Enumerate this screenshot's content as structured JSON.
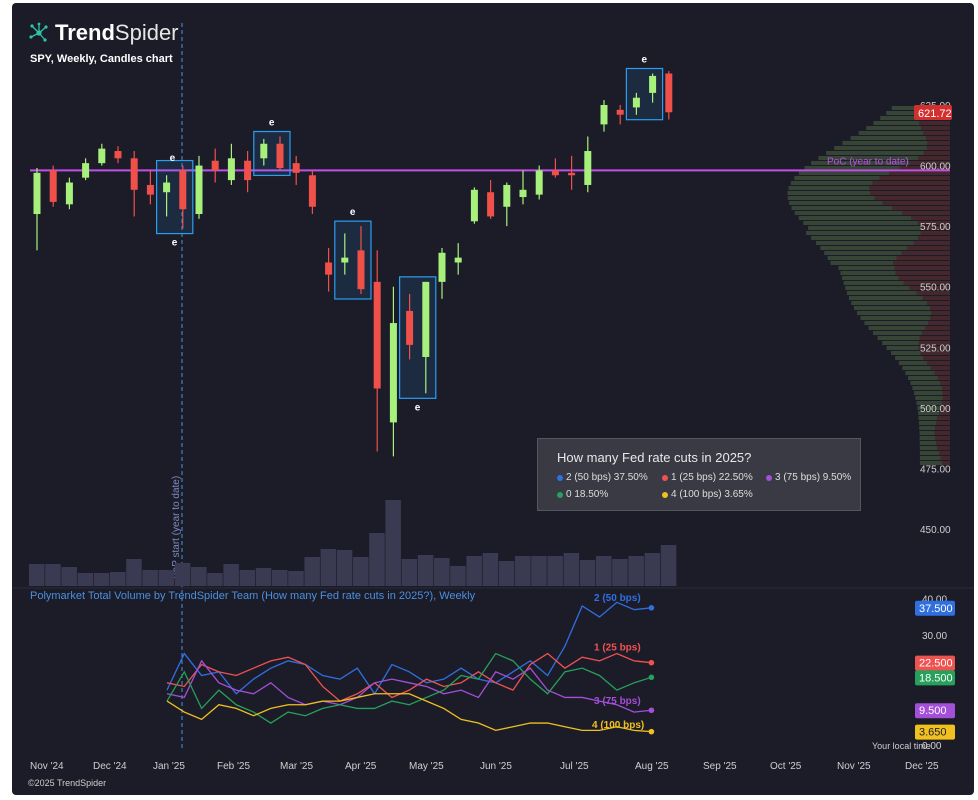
{
  "brand": {
    "bold": "Trend",
    "thin": "Spider",
    "logo_icon": "spider-network-icon"
  },
  "chart_subtitle": "SPY, Weekly, Candles chart",
  "indicator_title": "Polymarket Total Volume by TrendSpider Team (How many Fed rate cuts in 2025?), Weekly",
  "footer": "©2025 TrendSpider",
  "local_time_label": "Your local time",
  "vbp_label": "VbP start (year to date)",
  "poc_label": "PoC (year to date)",
  "earnings_marker": "e",
  "colors": {
    "bg": "#1c1c28",
    "up": "#a8f07c",
    "down": "#f0504a",
    "poc": "#c050e8",
    "highlight": "#2a9df4"
  },
  "legend": {
    "question": "How many Fed rate cuts in 2025?",
    "items": [
      {
        "label": "2 (50 bps) 37.50%",
        "color": "#2f6fe0"
      },
      {
        "label": "1 (25 bps) 22.50%",
        "color": "#ef5350"
      },
      {
        "label": "3 (75 bps) 9.50%",
        "color": "#a34fd8"
      },
      {
        "label": "0 18.50%",
        "color": "#26a05a"
      },
      {
        "label": "4 (100 bps) 3.65%",
        "color": "#f0c020"
      }
    ]
  },
  "chart_data": [
    {
      "type": "candlestick",
      "title": "SPY, Weekly, Candles chart",
      "x_ticks": [
        "Nov '24",
        "Dec '24",
        "Jan '25",
        "Feb '25",
        "Mar '25",
        "Apr '25",
        "May '25",
        "Jun '25",
        "Jul '25",
        "Aug '25",
        "Sep '25",
        "Oct '25",
        "Nov '25",
        "Dec '25"
      ],
      "y_ticks": [
        450.0,
        475.0,
        500.0,
        525.0,
        550.0,
        575.0,
        600.0,
        625.0
      ],
      "ylim": [
        442,
        650
      ],
      "last_price": "621.72",
      "poc_price": 598,
      "candles": [
        {
          "o": 580,
          "h": 599,
          "l": 565,
          "c": 597
        },
        {
          "o": 598,
          "h": 600,
          "l": 583,
          "c": 585
        },
        {
          "o": 584,
          "h": 595,
          "l": 582,
          "c": 593
        },
        {
          "o": 595,
          "h": 603,
          "l": 594,
          "c": 601
        },
        {
          "o": 601,
          "h": 609,
          "l": 600,
          "c": 607
        },
        {
          "o": 606,
          "h": 608,
          "l": 601,
          "c": 603
        },
        {
          "o": 603,
          "h": 606,
          "l": 579,
          "c": 590
        },
        {
          "o": 592,
          "h": 598,
          "l": 584,
          "c": 588
        },
        {
          "o": 589,
          "h": 596,
          "l": 579,
          "c": 593
        },
        {
          "o": 598,
          "h": 600,
          "l": 574,
          "c": 582
        },
        {
          "o": 580,
          "h": 604,
          "l": 578,
          "c": 600
        },
        {
          "o": 602,
          "h": 607,
          "l": 593,
          "c": 598
        },
        {
          "o": 594,
          "h": 609,
          "l": 592,
          "c": 603
        },
        {
          "o": 602,
          "h": 606,
          "l": 589,
          "c": 594
        },
        {
          "o": 603,
          "h": 611,
          "l": 600,
          "c": 609
        },
        {
          "o": 609,
          "h": 612,
          "l": 598,
          "c": 599
        },
        {
          "o": 601,
          "h": 604,
          "l": 592,
          "c": 597
        },
        {
          "o": 596,
          "h": 598,
          "l": 580,
          "c": 583
        },
        {
          "o": 560,
          "h": 566,
          "l": 548,
          "c": 555
        },
        {
          "o": 560,
          "h": 572,
          "l": 555,
          "c": 562
        },
        {
          "o": 565,
          "h": 575,
          "l": 547,
          "c": 549
        },
        {
          "o": 552,
          "h": 565,
          "l": 482,
          "c": 508
        },
        {
          "o": 494,
          "h": 550,
          "l": 480,
          "c": 535
        },
        {
          "o": 540,
          "h": 547,
          "l": 520,
          "c": 526
        },
        {
          "o": 521,
          "h": 552,
          "l": 506,
          "c": 552
        },
        {
          "o": 552,
          "h": 566,
          "l": 545,
          "c": 564
        },
        {
          "o": 560,
          "h": 568,
          "l": 555,
          "c": 562
        },
        {
          "o": 577,
          "h": 591,
          "l": 576,
          "c": 590
        },
        {
          "o": 589,
          "h": 594,
          "l": 578,
          "c": 579
        },
        {
          "o": 583,
          "h": 593,
          "l": 575,
          "c": 592
        },
        {
          "o": 587,
          "h": 598,
          "l": 584,
          "c": 590
        },
        {
          "o": 588,
          "h": 600,
          "l": 586,
          "c": 598
        },
        {
          "o": 598,
          "h": 603,
          "l": 595,
          "c": 596
        },
        {
          "o": 597,
          "h": 604,
          "l": 590,
          "c": 596
        },
        {
          "o": 592,
          "h": 612,
          "l": 589,
          "c": 606
        },
        {
          "o": 617,
          "h": 627,
          "l": 614,
          "c": 625
        },
        {
          "o": 623,
          "h": 625,
          "l": 617,
          "c": 621
        },
        {
          "o": 624,
          "h": 630,
          "l": 621,
          "c": 628
        },
        {
          "o": 630,
          "h": 638,
          "l": 626,
          "c": 637
        },
        {
          "o": 638,
          "h": 639,
          "l": 619,
          "c": 622
        }
      ],
      "earnings_boxes": [
        [
          8,
          9
        ],
        [
          14,
          15
        ],
        [
          19,
          20
        ],
        [
          23,
          24
        ],
        [
          37,
          38
        ]
      ],
      "volume": [
        22,
        22,
        19,
        13,
        13,
        14,
        27,
        16,
        16,
        23,
        19,
        13,
        22,
        16,
        18,
        16,
        15,
        29,
        37,
        36,
        29,
        53,
        86,
        27,
        31,
        28,
        20,
        30,
        33,
        25,
        30,
        30,
        30,
        33,
        26,
        30,
        27,
        30,
        33,
        41
      ]
    },
    {
      "type": "line",
      "title": "Polymarket Total Volume by TrendSpider Team (How many Fed rate cuts in 2025?), Weekly",
      "y_ticks": [
        0.0,
        30.0,
        40.0
      ],
      "ylim": [
        0,
        41
      ],
      "series": [
        {
          "name": "2 (50 bps)",
          "last": "37.500",
          "values": [
            15,
            25,
            19,
            20,
            14,
            18,
            21,
            23,
            22,
            19,
            18,
            21,
            14,
            22,
            20,
            17,
            18,
            21,
            18,
            17,
            20,
            23,
            19,
            27,
            38,
            35,
            39,
            37,
            37.5
          ]
        },
        {
          "name": "1 (25 bps)",
          "last": "22.500",
          "values": [
            17,
            16,
            22,
            20,
            19,
            21,
            23,
            24,
            22,
            16,
            12,
            14,
            17,
            13,
            15,
            18,
            16,
            17,
            20,
            17,
            15,
            22,
            25,
            21,
            24,
            23,
            25,
            23,
            22.5
          ]
        },
        {
          "name": "3 (75 bps)",
          "last": "9.500",
          "values": [
            14,
            13,
            23,
            17,
            15,
            14,
            17,
            13,
            11,
            12,
            11,
            13,
            17,
            18,
            17,
            16,
            14,
            15,
            13,
            20,
            18,
            21,
            15,
            13,
            13,
            12,
            11,
            9,
            9.5
          ]
        },
        {
          "name": "0",
          "last": "18.500",
          "values": [
            12,
            20,
            10,
            15,
            11,
            9,
            6,
            9,
            8,
            10,
            11,
            10,
            10,
            12,
            11,
            13,
            15,
            19,
            18,
            25,
            23,
            18,
            14,
            20,
            21,
            19,
            15,
            17,
            18.5
          ]
        },
        {
          "name": "4 (100 bps)",
          "last": "3.650",
          "values": [
            12,
            9,
            7,
            11,
            10,
            8,
            10,
            11,
            11,
            12,
            12,
            13,
            14,
            14,
            14,
            12,
            10,
            7,
            6,
            4,
            5,
            6,
            6,
            5,
            4,
            4,
            5,
            4,
            3.65
          ]
        }
      ],
      "line_labels": [
        "2 (50 bps)",
        "1 (25 bps)",
        "3 (75 bps)",
        "4 (100 bps)"
      ],
      "x_ticks": [
        "Nov '24",
        "Dec '24",
        "Jan '25",
        "Feb '25",
        "Mar '25",
        "Apr '25",
        "May '25",
        "Jun '25",
        "Jul '25",
        "Aug '25",
        "Sep '25",
        "Oct '25",
        "Nov '25",
        "Dec '25"
      ]
    }
  ]
}
